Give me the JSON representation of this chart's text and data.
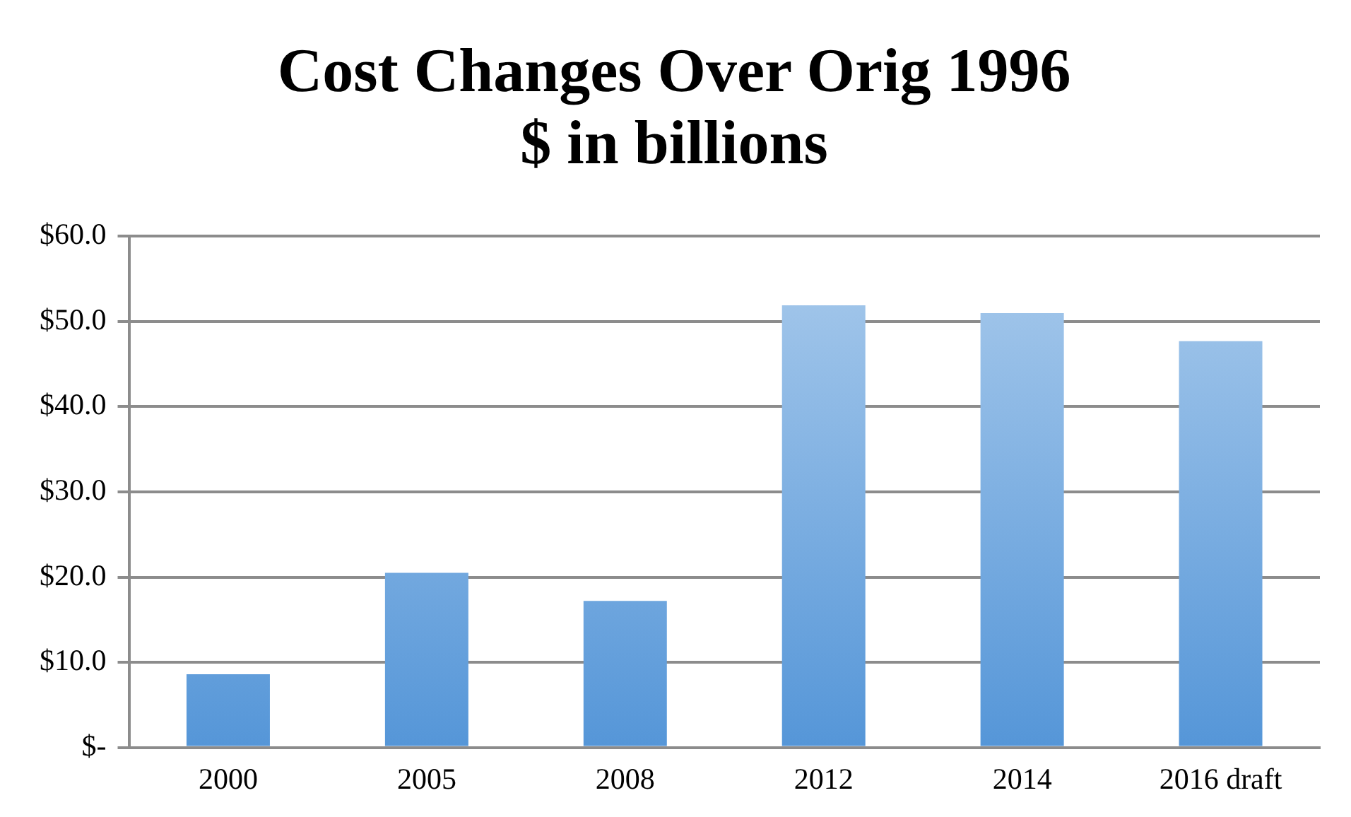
{
  "chart_data": {
    "type": "bar",
    "title": [
      "Cost Changes Over Orig 1996",
      "$ in billions"
    ],
    "categories": [
      "2000",
      "2005",
      "2008",
      "2012",
      "2014",
      "2016 draft"
    ],
    "values": [
      8.6,
      20.5,
      17.2,
      51.9,
      51.0,
      47.7
    ],
    "color": "#5596d8",
    "ylim": [
      0,
      60
    ],
    "yticks": [
      {
        "value": 0,
        "label": "$-"
      },
      {
        "value": 10,
        "label": "$10.0"
      },
      {
        "value": 20,
        "label": "$20.0"
      },
      {
        "value": 30,
        "label": "$30.0"
      },
      {
        "value": 40,
        "label": "$40.0"
      },
      {
        "value": 50,
        "label": "$50.0"
      },
      {
        "value": 60,
        "label": "$60.0"
      }
    ],
    "grid": "y",
    "legend": false
  }
}
